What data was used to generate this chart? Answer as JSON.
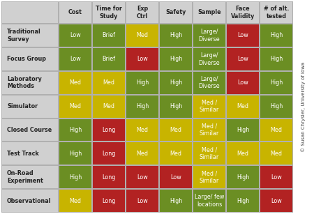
{
  "col_headers": [
    "Cost",
    "Time for\nStudy",
    "Exp\nCtrl",
    "Safety",
    "Sample",
    "Face\nValidity",
    "# of alt.\ntested"
  ],
  "row_headers": [
    "Traditional\nSurvey",
    "Focus Group",
    "Laboratory\nMethods",
    "Simulator",
    "Closed Course",
    "Test Track",
    "On-Road\nExperiment",
    "Observational"
  ],
  "cell_texts": [
    [
      "Low",
      "Brief",
      "Med",
      "High",
      "Large/\nDiverse",
      "Low",
      "High"
    ],
    [
      "Low",
      "Brief",
      "Low",
      "High",
      "Large/\nDiverse",
      "Low",
      "High"
    ],
    [
      "Med",
      "Med",
      "High",
      "High",
      "Large/\nDiverse",
      "Low",
      "High"
    ],
    [
      "Med",
      "Med",
      "High",
      "High",
      "Med /\nSimilar",
      "Med",
      "High"
    ],
    [
      "High",
      "Long",
      "Med",
      "Med",
      "Med /\nSimilar",
      "High",
      "Med"
    ],
    [
      "High",
      "Long",
      "Med",
      "Med",
      "Med /\nSimilar",
      "Med",
      "Med"
    ],
    [
      "High",
      "Long",
      "Low",
      "Low",
      "Med /\nSimilar",
      "High",
      "Low"
    ],
    [
      "Med",
      "Long",
      "Low",
      "High",
      "Large/ few\nlocations",
      "High",
      "Low"
    ]
  ],
  "cell_colors": [
    [
      "#6b8e23",
      "#6b8e23",
      "#c8b400",
      "#6b8e23",
      "#6b8e23",
      "#b22222",
      "#6b8e23"
    ],
    [
      "#6b8e23",
      "#6b8e23",
      "#b22222",
      "#6b8e23",
      "#6b8e23",
      "#b22222",
      "#6b8e23"
    ],
    [
      "#c8b400",
      "#c8b400",
      "#6b8e23",
      "#6b8e23",
      "#6b8e23",
      "#b22222",
      "#6b8e23"
    ],
    [
      "#c8b400",
      "#c8b400",
      "#6b8e23",
      "#6b8e23",
      "#c8b400",
      "#c8b400",
      "#6b8e23"
    ],
    [
      "#6b8e23",
      "#b22222",
      "#c8b400",
      "#c8b400",
      "#c8b400",
      "#6b8e23",
      "#c8b400"
    ],
    [
      "#6b8e23",
      "#b22222",
      "#c8b400",
      "#c8b400",
      "#c8b400",
      "#c8b400",
      "#c8b400"
    ],
    [
      "#6b8e23",
      "#b22222",
      "#b22222",
      "#b22222",
      "#c8b400",
      "#6b8e23",
      "#b22222"
    ],
    [
      "#c8b400",
      "#b22222",
      "#b22222",
      "#6b8e23",
      "#6b8e23",
      "#6b8e23",
      "#b22222"
    ]
  ],
  "header_bg": "#d0d0d0",
  "row_header_bg": "#d0d0d0",
  "grid_bg": "#b0b0b0",
  "text_color_white": "#ffffff",
  "header_text_color": "#222222",
  "watermark": "© Susan Chrysler, University of Iowa",
  "fig_bg": "#ffffff"
}
